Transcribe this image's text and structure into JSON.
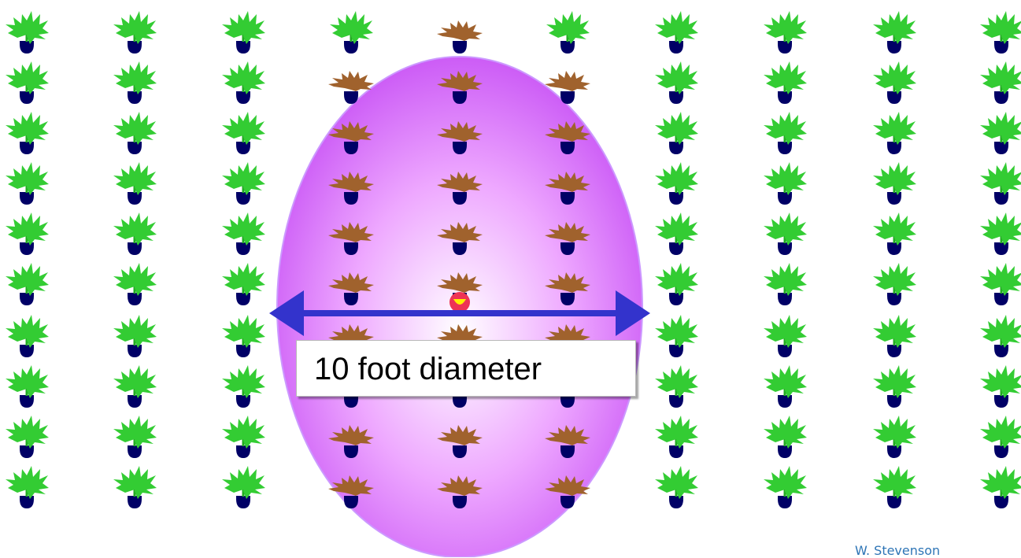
{
  "diagram": {
    "label": "10 foot diameter",
    "credit": "W. Stevenson",
    "plant_rows": 10,
    "plants_per_row": 10,
    "infected_columns": [
      4,
      5,
      6
    ],
    "infection_source": {
      "column": 5,
      "row": 6
    },
    "colors": {
      "healthy_leaves": "#33cc33",
      "infected_leaves": "#a0622d",
      "pot": "#000066",
      "zone_edge": "#cc66ff",
      "zone_center": "#ffffff",
      "arrow": "#3333cc",
      "source_spot": "#ee3355",
      "source_core": "#ffee00"
    },
    "icons": [
      "healthy-plant-icon",
      "infected-plant-icon",
      "double-arrow-icon"
    ]
  }
}
